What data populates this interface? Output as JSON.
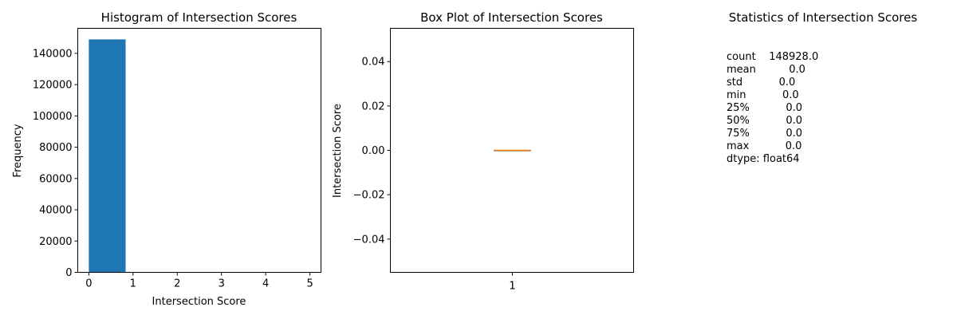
{
  "chart_data": [
    {
      "type": "bar",
      "title": "Histogram of Intersection Scores",
      "xlabel": "Intersection Score",
      "ylabel": "Frequency",
      "xlim": [
        -0.25,
        5.25
      ],
      "ylim": [
        0,
        156000
      ],
      "x_ticks": [
        "0",
        "1",
        "2",
        "3",
        "4",
        "5"
      ],
      "y_ticks": [
        "0",
        "20000",
        "40000",
        "60000",
        "80000",
        "100000",
        "120000",
        "140000"
      ],
      "bins": [
        {
          "start": 0,
          "end": 0.833,
          "value": 148928
        },
        {
          "start": 0.833,
          "end": 1.667,
          "value": 0
        },
        {
          "start": 1.667,
          "end": 2.5,
          "value": 0
        },
        {
          "start": 2.5,
          "end": 3.333,
          "value": 0
        },
        {
          "start": 3.333,
          "end": 4.167,
          "value": 0
        },
        {
          "start": 4.167,
          "end": 5.0,
          "value": 0
        }
      ],
      "bar_color": "#1f77b4"
    },
    {
      "type": "box",
      "title": "Box Plot of Intersection Scores",
      "xlabel": "",
      "ylabel": "Intersection Score",
      "ylim": [
        -0.055,
        0.055
      ],
      "x_ticks": [
        "1"
      ],
      "y_ticks": [
        "−0.04",
        "−0.02",
        "0.00",
        "0.02",
        "0.04"
      ],
      "y_tick_values": [
        -0.04,
        -0.02,
        0.0,
        0.02,
        0.04
      ],
      "box": {
        "min": 0.0,
        "q1": 0.0,
        "median": 0.0,
        "q3": 0.0,
        "max": 0.0
      },
      "median_color": "#ff7f0e"
    }
  ],
  "stats_panel": {
    "title": "Statistics of Intersection Scores",
    "lines": [
      "count    148928.0",
      "mean          0.0",
      "std           0.0",
      "min           0.0",
      "25%           0.0",
      "50%           0.0",
      "75%           0.0",
      "max           0.0",
      "dtype: float64"
    ]
  }
}
